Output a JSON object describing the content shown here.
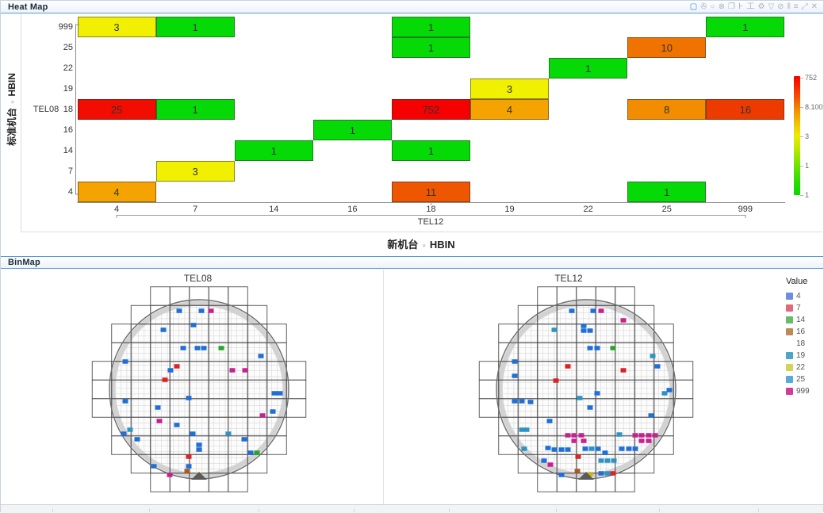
{
  "heatmap_panel": {
    "title": "Heat Map",
    "toolbar_icons": [
      {
        "name": "rect-select-icon",
        "glyph": "▢"
      },
      {
        "name": "lasso-select-icon",
        "glyph": "✇"
      },
      {
        "name": "circle-select-icon",
        "glyph": "○"
      },
      {
        "name": "deselect-icon",
        "glyph": "⊗"
      },
      {
        "name": "copy-icon",
        "glyph": "❐"
      },
      {
        "name": "h-span-icon",
        "glyph": "Ͱ"
      },
      {
        "name": "i-beam-icon",
        "glyph": "工"
      },
      {
        "name": "settings-gear-icon",
        "glyph": "⚙"
      },
      {
        "name": "filter-funnel-icon",
        "glyph": "▽"
      },
      {
        "name": "edit-icon",
        "glyph": "⊘"
      },
      {
        "name": "columns-icon",
        "glyph": "⫴"
      },
      {
        "name": "menu-icon",
        "glyph": "≡"
      },
      {
        "name": "maximize-icon",
        "glyph": "⤢"
      },
      {
        "name": "close-icon",
        "glyph": "✕"
      }
    ],
    "y_axis_title_main": "标准机台",
    "y_axis_title_sep": "»",
    "y_axis_title_sub": "HBIN",
    "y_group_label": "TEL08",
    "x_group_label": "TEL12",
    "x_axis_title_main": "新机台",
    "x_axis_title_sep": "»",
    "x_axis_title_sub": "HBIN"
  },
  "binmap_panel": {
    "title": "BinMap",
    "left_wafer_title": "TEL08",
    "right_wafer_title": "TEL12",
    "legend_title": "Value",
    "legend_items": [
      {
        "label": "4",
        "color": "#6b8ee3"
      },
      {
        "label": "7",
        "color": "#e0697a"
      },
      {
        "label": "14",
        "color": "#67bb6a"
      },
      {
        "label": "16",
        "color": "#be8a57"
      },
      {
        "label": "18",
        "color": "#ffffff"
      },
      {
        "label": "19",
        "color": "#4ba4cb"
      },
      {
        "label": "22",
        "color": "#d3d355"
      },
      {
        "label": "25",
        "color": "#57abd8"
      },
      {
        "label": "999",
        "color": "#d23c97"
      }
    ]
  },
  "chart_data": [
    {
      "type": "heatmap",
      "title": "Heat Map",
      "xlabel": "TEL12 (新机台 » HBIN)",
      "ylabel": "TEL08 (标准机台 » HBIN)",
      "x_categories": [
        "4",
        "7",
        "14",
        "16",
        "18",
        "19",
        "22",
        "25",
        "999"
      ],
      "y_categories": [
        "999",
        "25",
        "22",
        "19",
        "18",
        "16",
        "14",
        "7",
        "4"
      ],
      "cells": [
        {
          "row": "999",
          "col": "4",
          "value": 3,
          "color": "#f0f000"
        },
        {
          "row": "999",
          "col": "7",
          "value": 1,
          "color": "#06da06"
        },
        {
          "row": "999",
          "col": "18",
          "value": 1,
          "color": "#06da06"
        },
        {
          "row": "999",
          "col": "999",
          "value": 1,
          "color": "#06da06"
        },
        {
          "row": "25",
          "col": "18",
          "value": 1,
          "color": "#06da06"
        },
        {
          "row": "25",
          "col": "25",
          "value": 10,
          "color": "#f07300"
        },
        {
          "row": "22",
          "col": "22",
          "value": 1,
          "color": "#06da06"
        },
        {
          "row": "19",
          "col": "19",
          "value": 3,
          "color": "#f0f000"
        },
        {
          "row": "18",
          "col": "4",
          "value": 25,
          "color": "#f20d00"
        },
        {
          "row": "18",
          "col": "7",
          "value": 1,
          "color": "#06da06"
        },
        {
          "row": "18",
          "col": "18",
          "value": 752,
          "color": "#f70000"
        },
        {
          "row": "18",
          "col": "19",
          "value": 4,
          "color": "#f5a300"
        },
        {
          "row": "18",
          "col": "25",
          "value": 8,
          "color": "#f28c00"
        },
        {
          "row": "18",
          "col": "999",
          "value": 16,
          "color": "#ed3b00"
        },
        {
          "row": "16",
          "col": "16",
          "value": 1,
          "color": "#06da06"
        },
        {
          "row": "14",
          "col": "14",
          "value": 1,
          "color": "#06da06"
        },
        {
          "row": "14",
          "col": "18",
          "value": 1,
          "color": "#06da06"
        },
        {
          "row": "7",
          "col": "7",
          "value": 3,
          "color": "#f0f000"
        },
        {
          "row": "4",
          "col": "4",
          "value": 4,
          "color": "#f5a300"
        },
        {
          "row": "4",
          "col": "18",
          "value": 11,
          "color": "#ee5600"
        },
        {
          "row": "4",
          "col": "25",
          "value": 1,
          "color": "#06da06"
        }
      ],
      "color_scale": {
        "tick_labels": [
          "752",
          "8.100",
          "3",
          "1",
          "1"
        ],
        "top_color": "#fa0000",
        "bottom_color": "#00db00"
      }
    },
    {
      "type": "wafer-binmap",
      "legend_title": "Value",
      "bin_colors": {
        "4": "#1f6fd6",
        "7": "#dd2127",
        "14": "#27a32e",
        "16": "#a85b22",
        "18": "#ffffff",
        "19": "#2e93c4",
        "22": "#c9b414",
        "25": "#4aa4cf",
        "999": "#c7208f"
      },
      "wafers": [
        {
          "name": "TEL08",
          "dies": [
            [
              115,
              39,
              "4"
            ],
            [
              143,
              39,
              "4"
            ],
            [
              155,
              39,
              "999"
            ],
            [
              133,
              57,
              "4"
            ],
            [
              95,
              63,
              "4"
            ],
            [
              120,
              86,
              "4"
            ],
            [
              138,
              86,
              "4"
            ],
            [
              146,
              86,
              "4"
            ],
            [
              168,
              86,
              "14"
            ],
            [
              218,
              96,
              "4"
            ],
            [
              47,
              103,
              "4"
            ],
            [
              112,
              109,
              "7"
            ],
            [
              104,
              114,
              "4"
            ],
            [
              182,
              114,
              "999"
            ],
            [
              198,
              114,
              "999"
            ],
            [
              97,
              126,
              "7"
            ],
            [
              235,
              143,
              "4"
            ],
            [
              242,
              143,
              "4"
            ],
            [
              47,
              153,
              "4"
            ],
            [
              127,
              149,
              "4"
            ],
            [
              88,
              161,
              "4"
            ],
            [
              220,
              171,
              "999"
            ],
            [
              233,
              166,
              "4"
            ],
            [
              90,
              178,
              "999"
            ],
            [
              112,
              183,
              "4"
            ],
            [
              53,
              189,
              "19"
            ],
            [
              45,
              194,
              "4"
            ],
            [
              132,
              194,
              "4"
            ],
            [
              177,
              194,
              "19"
            ],
            [
              62,
              201,
              "4"
            ],
            [
              197,
              201,
              "4"
            ],
            [
              140,
              208,
              "4"
            ],
            [
              140,
              214,
              "4"
            ],
            [
              205,
              218,
              "4"
            ],
            [
              213,
              218,
              "14"
            ],
            [
              127,
              223,
              "7"
            ],
            [
              83,
              235,
              "4"
            ],
            [
              127,
              235,
              "4"
            ],
            [
              103,
              246,
              "999"
            ],
            [
              125,
              241,
              "16"
            ],
            [
              140,
              246,
              "22"
            ]
          ]
        },
        {
          "name": "TEL12",
          "dies": [
            [
              122,
              39,
              "4"
            ],
            [
              149,
              39,
              "4"
            ],
            [
              159,
              39,
              "999"
            ],
            [
              187,
              51,
              "999"
            ],
            [
              137,
              58,
              "4"
            ],
            [
              137,
              64,
              "4"
            ],
            [
              145,
              64,
              "4"
            ],
            [
              100,
              63,
              "19"
            ],
            [
              145,
              86,
              "4"
            ],
            [
              154,
              86,
              "4"
            ],
            [
              174,
              86,
              "14"
            ],
            [
              224,
              96,
              "19"
            ],
            [
              50,
              103,
              "4"
            ],
            [
              117,
              109,
              "7"
            ],
            [
              187,
              114,
              "7"
            ],
            [
              230,
              109,
              "4"
            ],
            [
              50,
              121,
              "4"
            ],
            [
              102,
              127,
              "7"
            ],
            [
              132,
              149,
              "19"
            ],
            [
              154,
              143,
              "4"
            ],
            [
              239,
              143,
              "19"
            ],
            [
              245,
              139,
              "4"
            ],
            [
              50,
              153,
              "4"
            ],
            [
              59,
              153,
              "4"
            ],
            [
              70,
              154,
              "4"
            ],
            [
              145,
              161,
              "4"
            ],
            [
              222,
              171,
              "4"
            ],
            [
              94,
              178,
              "4"
            ],
            [
              59,
              189,
              "19"
            ],
            [
              65,
              189,
              "19"
            ],
            [
              117,
              196,
              "999"
            ],
            [
              125,
              196,
              "999"
            ],
            [
              134,
              196,
              "999"
            ],
            [
              125,
              203,
              "999"
            ],
            [
              137,
              203,
              "999"
            ],
            [
              182,
              195,
              "19"
            ],
            [
              202,
              196,
              "999"
            ],
            [
              210,
              196,
              "999"
            ],
            [
              219,
              196,
              "999"
            ],
            [
              227,
              196,
              "999"
            ],
            [
              210,
              203,
              "999"
            ],
            [
              219,
              203,
              "999"
            ],
            [
              62,
              213,
              "19"
            ],
            [
              92,
              212,
              "4"
            ],
            [
              100,
              214,
              "4"
            ],
            [
              109,
              214,
              "4"
            ],
            [
              117,
              214,
              "4"
            ],
            [
              139,
              213,
              "4"
            ],
            [
              147,
              213,
              "19"
            ],
            [
              155,
              213,
              "4"
            ],
            [
              164,
              218,
              "4"
            ],
            [
              185,
              213,
              "4"
            ],
            [
              194,
              213,
              "4"
            ],
            [
              202,
              213,
              "4"
            ],
            [
              130,
              223,
              "7"
            ],
            [
              159,
              228,
              "19"
            ],
            [
              167,
              228,
              "19"
            ],
            [
              175,
              228,
              "19"
            ],
            [
              87,
              228,
              "4"
            ],
            [
              95,
              233,
              "999"
            ],
            [
              129,
              241,
              "16"
            ],
            [
              145,
              245,
              "22"
            ],
            [
              159,
              244,
              "4"
            ],
            [
              167,
              244,
              "19"
            ],
            [
              174,
              244,
              "7"
            ],
            [
              109,
              246,
              "4"
            ]
          ]
        }
      ]
    }
  ]
}
